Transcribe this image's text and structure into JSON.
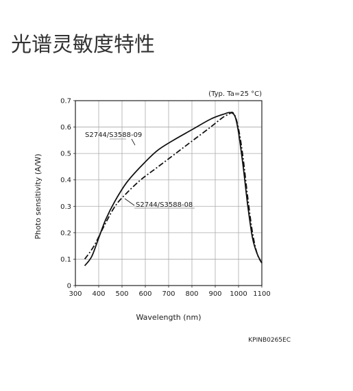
{
  "page": {
    "heading": "光谱灵敏度特性"
  },
  "chart_data": {
    "type": "line",
    "title": "",
    "xlabel": "Wavelength (nm)",
    "ylabel": "Photo sensitivity (A/W)",
    "condition": "(Typ. Ta=25 °C)",
    "code": "KPINB0265EC",
    "xlim": [
      300,
      1100
    ],
    "ylim": [
      0,
      0.7
    ],
    "xticks": [
      300,
      400,
      500,
      600,
      700,
      800,
      900,
      1000,
      1100
    ],
    "yticks": [
      0,
      0.1,
      0.2,
      0.3,
      0.4,
      0.5,
      0.6,
      0.7
    ],
    "ytick_labels": [
      "0",
      "0.1",
      "0.2",
      "0.3",
      "0.4",
      "0.5",
      "0.6",
      "0.7"
    ],
    "grid": true,
    "colors": {
      "line": "#111111",
      "grid": "#aaaaaa",
      "frame": "#222222",
      "background": "#ffffff"
    },
    "series": [
      {
        "name": "S2744/S3588-09",
        "style": "solid",
        "x": [
          340,
          370,
          400,
          430,
          470,
          520,
          580,
          650,
          720,
          800,
          880,
          940,
          965,
          985,
          1000,
          1020,
          1040,
          1060,
          1080,
          1100
        ],
        "y": [
          0.075,
          0.11,
          0.18,
          0.25,
          0.32,
          0.39,
          0.45,
          0.51,
          0.55,
          0.59,
          0.63,
          0.65,
          0.655,
          0.64,
          0.58,
          0.45,
          0.3,
          0.18,
          0.12,
          0.085
        ]
      },
      {
        "name": "S2744/S3588-08",
        "style": "dash-dot",
        "x": [
          340,
          380,
          420,
          470,
          520,
          580,
          640,
          700,
          760,
          820,
          880,
          930,
          960,
          975,
          990,
          1005,
          1020,
          1040,
          1060,
          1080,
          1100
        ],
        "y": [
          0.1,
          0.15,
          0.22,
          0.3,
          0.35,
          0.4,
          0.44,
          0.48,
          0.52,
          0.56,
          0.6,
          0.635,
          0.65,
          0.655,
          0.63,
          0.57,
          0.48,
          0.33,
          0.2,
          0.12,
          0.085
        ]
      }
    ]
  }
}
